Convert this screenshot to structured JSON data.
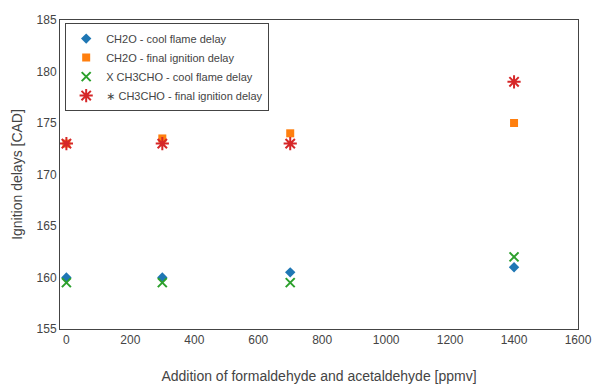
{
  "chart_data": {
    "type": "scatter",
    "xlabel": "Addition of formaldehyde and acetaldehyde [ppmv]",
    "ylabel": "Ignition delays [CAD]",
    "series": [
      {
        "name": "CH2O - cool flame delay",
        "marker": "diamond",
        "x": [
          0,
          300,
          700,
          1400
        ],
        "values": [
          160,
          160,
          160.5,
          161
        ]
      },
      {
        "name": "CH2O - final ignition delay",
        "marker": "square",
        "x": [
          0,
          300,
          700,
          1400
        ],
        "values": [
          173,
          173.5,
          174,
          175
        ]
      },
      {
        "name": "X CH3CHO - cool flame delay",
        "marker": "x",
        "x": [
          0,
          300,
          700,
          1400
        ],
        "values": [
          159.5,
          159.5,
          159.5,
          162
        ]
      },
      {
        "name": "∗ CH3CHO - final ignition delay",
        "marker": "asterisk",
        "x": [
          0,
          300,
          700,
          1400
        ],
        "values": [
          173,
          173,
          173,
          179
        ]
      }
    ],
    "xlim": [
      -20,
      1600
    ],
    "ylim": [
      155,
      185
    ],
    "xticks": [
      0,
      200,
      400,
      600,
      800,
      1000,
      1200,
      1400,
      1600
    ],
    "yticks": [
      155,
      160,
      165,
      170,
      175,
      180,
      185
    ],
    "grid": false,
    "legend": "upper left"
  }
}
